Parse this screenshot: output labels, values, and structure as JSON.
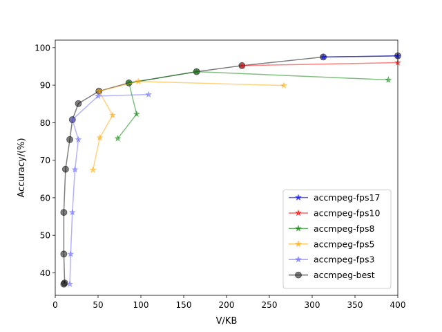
{
  "chart_data": {
    "type": "line",
    "title": "",
    "xlabel": "V/KB",
    "ylabel": "Accuracy/(%)",
    "xlim": [
      0,
      400
    ],
    "ylim": [
      34,
      102
    ],
    "xticks": [
      0,
      50,
      100,
      150,
      200,
      250,
      300,
      350,
      400
    ],
    "yticks": [
      40,
      50,
      60,
      70,
      80,
      90,
      100
    ],
    "grid": false,
    "legend_position": "lower-right",
    "series": [
      {
        "name": "accmpeg-fps17",
        "color": "#0000ff",
        "marker": "star",
        "points": [
          [
            313,
            97.5
          ],
          [
            400,
            97.8
          ]
        ]
      },
      {
        "name": "accmpeg-fps10",
        "color": "#ff0000",
        "marker": "star",
        "points": [
          [
            218,
            95.2
          ],
          [
            400,
            96.0
          ]
        ]
      },
      {
        "name": "accmpeg-fps8",
        "color": "#008000",
        "marker": "star",
        "points": [
          [
            73,
            75.8
          ],
          [
            95,
            82.3
          ],
          [
            86,
            90.6
          ],
          [
            165,
            93.6
          ],
          [
            389,
            91.4
          ]
        ]
      },
      {
        "name": "accmpeg-fps5",
        "color": "#ffa500",
        "marker": "star",
        "points": [
          [
            44,
            67.4
          ],
          [
            52,
            76.0
          ],
          [
            67,
            82.0
          ],
          [
            51,
            88.4
          ],
          [
            97,
            91.0
          ],
          [
            267,
            89.9
          ]
        ]
      },
      {
        "name": "accmpeg-fps3",
        "color": "#6666ff",
        "marker": "star",
        "points": [
          [
            17,
            37.0
          ],
          [
            18,
            45.0
          ],
          [
            20,
            56.1
          ],
          [
            23,
            67.5
          ],
          [
            27,
            75.5
          ],
          [
            20,
            80.8
          ],
          [
            50,
            87.1
          ],
          [
            109,
            87.5
          ]
        ]
      },
      {
        "name": "accmpeg-best",
        "color": "#000000",
        "marker": "circle",
        "points": [
          [
            10,
            37.0
          ],
          [
            11,
            37.3
          ],
          [
            10,
            45.0
          ],
          [
            10,
            56.1
          ],
          [
            12,
            67.6
          ],
          [
            17,
            75.5
          ],
          [
            20,
            80.8
          ],
          [
            27,
            85.1
          ],
          [
            51,
            88.4
          ],
          [
            86,
            90.6
          ],
          [
            165,
            93.6
          ],
          [
            218,
            95.2
          ],
          [
            313,
            97.5
          ],
          [
            400,
            97.8
          ]
        ]
      }
    ]
  }
}
